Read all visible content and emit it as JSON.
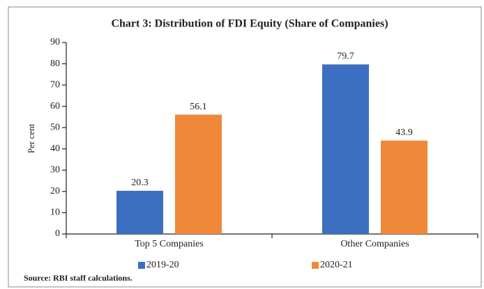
{
  "chart_data": {
    "type": "bar",
    "title": "Chart 3: Distribution of FDI Equity (Share of Companies)",
    "ylabel": "Per cent",
    "categories": [
      "Top 5 Companies",
      "Other Companies"
    ],
    "series": [
      {
        "name": "2019-20",
        "color": "#3d6fc0",
        "values": [
          20.3,
          79.7
        ]
      },
      {
        "name": "2020-21",
        "color": "#f0883a",
        "values": [
          56.1,
          43.9
        ]
      }
    ],
    "ylim": [
      0,
      90
    ],
    "yticks": [
      0,
      10,
      20,
      30,
      40,
      50,
      60,
      70,
      80,
      90
    ],
    "grid": false,
    "legend": "bottom",
    "source": "Source: RBI staff calculations."
  }
}
